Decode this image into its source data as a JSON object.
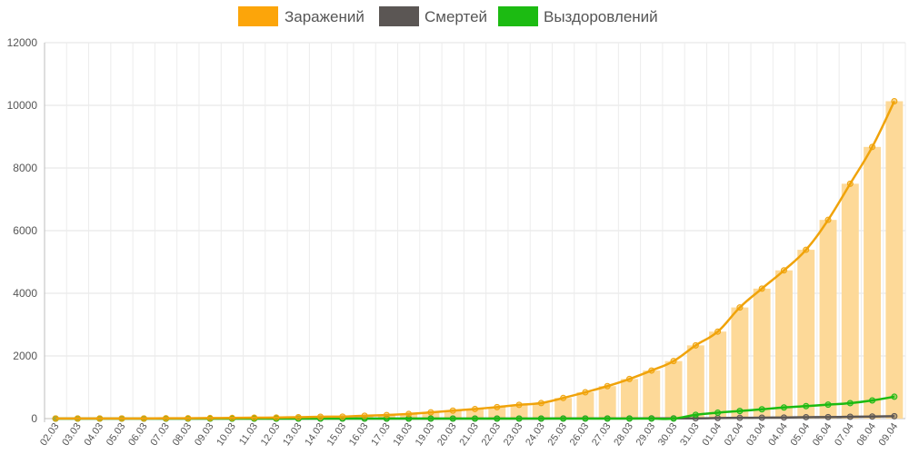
{
  "chart_data": {
    "type": "line",
    "title": "",
    "xlabel": "",
    "ylabel": "",
    "ylim": [
      0,
      12000
    ],
    "yticks": [
      0,
      2000,
      4000,
      6000,
      8000,
      10000,
      12000
    ],
    "y_tick_labels": [
      "0",
      "2000",
      "4000",
      "6000",
      "8000",
      "10000",
      "12000"
    ],
    "grid": true,
    "legend_position": "top-center",
    "categories": [
      "02.03",
      "03.03",
      "04.03",
      "05.03",
      "06.03",
      "07.03",
      "08.03",
      "09.03",
      "10.03",
      "11.03",
      "12.03",
      "13.03",
      "14.03",
      "15.03",
      "16.03",
      "17.03",
      "18.03",
      "19.03",
      "20.03",
      "21.03",
      "22.03",
      "23.03",
      "24.03",
      "25.03",
      "26.03",
      "27.03",
      "28.03",
      "29.03",
      "30.03",
      "31.03",
      "01.04",
      "02.04",
      "03.04",
      "04.04",
      "05.04",
      "06.04",
      "07.04",
      "08.04",
      "09.04"
    ],
    "series": [
      {
        "name": "Заражений",
        "color": "#f0a30a",
        "bar_color": "#fdd998",
        "values": [
          3,
          3,
          3,
          4,
          4,
          10,
          10,
          17,
          20,
          28,
          34,
          45,
          59,
          63,
          90,
          114,
          147,
          199,
          253,
          306,
          367,
          438,
          495,
          658,
          840,
          1036,
          1264,
          1534,
          1836,
          2337,
          2777,
          3548,
          4149,
          4731,
          5389,
          6343,
          7497,
          8672,
          10131
        ]
      },
      {
        "name": "Смертей",
        "color": "#5b5654",
        "values": [
          0,
          0,
          0,
          0,
          0,
          0,
          0,
          0,
          0,
          0,
          0,
          0,
          0,
          0,
          0,
          0,
          0,
          1,
          1,
          1,
          1,
          1,
          1,
          3,
          3,
          3,
          4,
          8,
          9,
          9,
          17,
          24,
          29,
          34,
          45,
          47,
          58,
          66,
          76
        ]
      },
      {
        "name": "Выздоровлений",
        "color": "#1cbb12",
        "values": [
          0,
          0,
          0,
          0,
          0,
          0,
          0,
          0,
          0,
          0,
          0,
          0,
          0,
          0,
          0,
          0,
          0,
          0,
          0,
          0,
          0,
          0,
          0,
          0,
          0,
          0,
          0,
          0,
          0,
          121,
          190,
          242,
          298,
          355,
          398,
          445,
          494,
          580,
          698
        ]
      }
    ]
  }
}
